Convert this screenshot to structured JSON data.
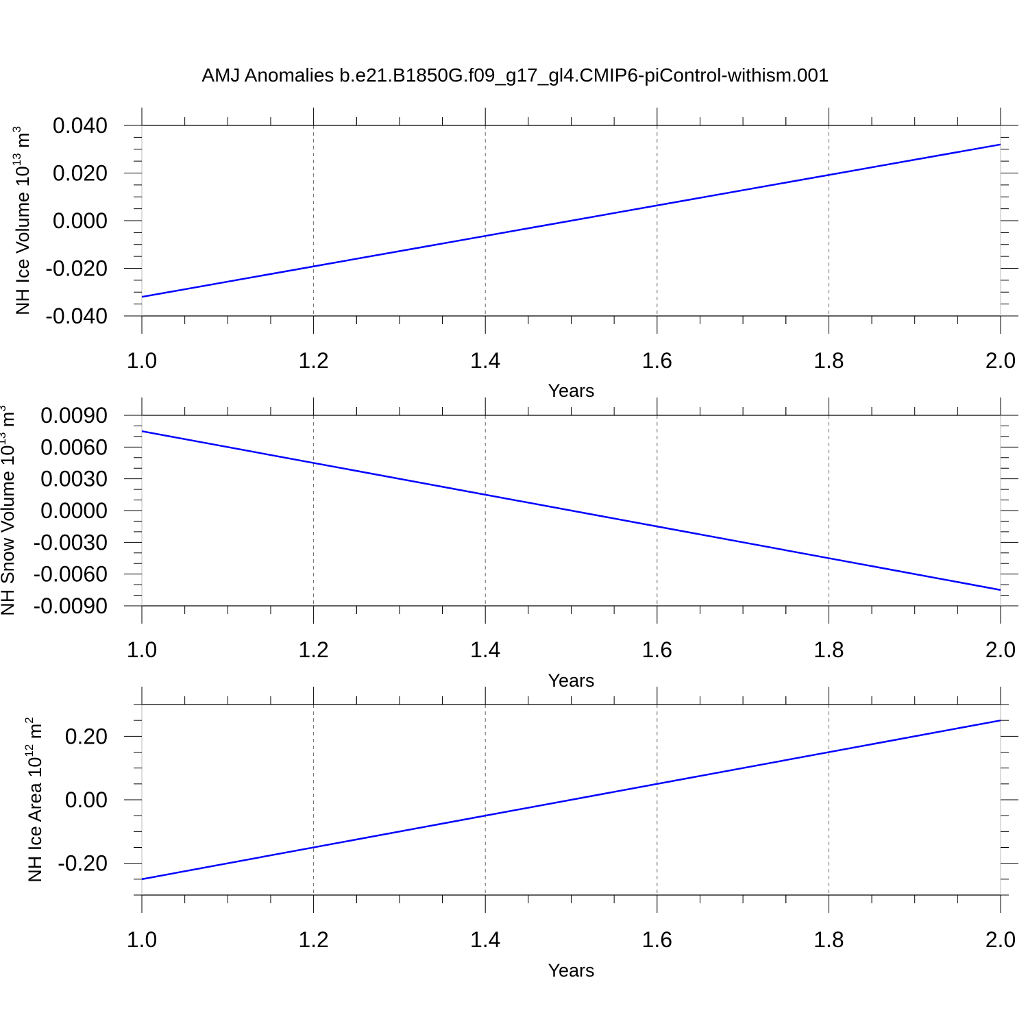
{
  "title": "AMJ Anomalies b.e21.B1850G.f09_g17_gl4.CMIP6-piControl-withism.001",
  "chart_data": [
    {
      "type": "line",
      "title": "AMJ Anomalies b.e21.B1850G.f09_g17_gl4.CMIP6-piControl-withism.001",
      "xlabel": "Years",
      "ylabel": {
        "text": "NH Ice Volume 10",
        "exp": "13",
        "unit": " m",
        "unit_exp": "3"
      },
      "xlim": [
        1.0,
        2.0
      ],
      "ylim": [
        -0.04,
        0.04
      ],
      "x_ticks": [
        1.0,
        1.2,
        1.4,
        1.6,
        1.8,
        2.0
      ],
      "x_tick_labels": [
        "1.0",
        "1.2",
        "1.4",
        "1.6",
        "1.8",
        "2.0"
      ],
      "y_ticks": [
        -0.04,
        -0.02,
        0.0,
        0.02,
        0.04
      ],
      "y_tick_labels": [
        "-0.040",
        "-0.020",
        "0.000",
        "0.020",
        "0.040"
      ],
      "x_minor_step": 0.05,
      "y_minor_step": 0.005,
      "grid": "x-dashed",
      "series": [
        {
          "x": [
            1.0,
            2.0
          ],
          "values": [
            -0.032,
            0.032
          ],
          "color": "#0000ff"
        }
      ]
    },
    {
      "type": "line",
      "xlabel": "Years",
      "ylabel": {
        "text": "NH Snow Volume 10",
        "exp": "13",
        "unit": " m",
        "unit_exp": "3"
      },
      "xlim": [
        1.0,
        2.0
      ],
      "ylim": [
        -0.009,
        0.009
      ],
      "x_ticks": [
        1.0,
        1.2,
        1.4,
        1.6,
        1.8,
        2.0
      ],
      "x_tick_labels": [
        "1.0",
        "1.2",
        "1.4",
        "1.6",
        "1.8",
        "2.0"
      ],
      "y_ticks": [
        -0.009,
        -0.006,
        -0.003,
        0.0,
        0.003,
        0.006,
        0.009
      ],
      "y_tick_labels": [
        "-0.0090",
        "-0.0060",
        "-0.0030",
        "0.0000",
        "0.0030",
        "0.0060",
        "0.0090"
      ],
      "x_minor_step": 0.05,
      "y_minor_step": 0.001,
      "grid": "x-dashed",
      "series": [
        {
          "x": [
            1.0,
            2.0
          ],
          "values": [
            0.0075,
            -0.0075
          ],
          "color": "#0000ff"
        }
      ]
    },
    {
      "type": "line",
      "xlabel": "Years",
      "ylabel": {
        "text": "NH Ice Area 10",
        "exp": "12",
        "unit": " m",
        "unit_exp": "2"
      },
      "xlim": [
        1.0,
        2.0
      ],
      "ylim": [
        -0.3,
        0.3
      ],
      "x_ticks": [
        1.0,
        1.2,
        1.4,
        1.6,
        1.8,
        2.0
      ],
      "x_tick_labels": [
        "1.0",
        "1.2",
        "1.4",
        "1.6",
        "1.8",
        "2.0"
      ],
      "y_ticks": [
        -0.2,
        0.0,
        0.2
      ],
      "y_tick_labels": [
        "-0.20",
        "0.00",
        "0.20"
      ],
      "x_minor_step": 0.05,
      "y_minor_step": 0.05,
      "grid": "x-dashed",
      "series": [
        {
          "x": [
            1.0,
            2.0
          ],
          "values": [
            -0.25,
            0.25
          ],
          "color": "#0000ff"
        }
      ]
    }
  ]
}
